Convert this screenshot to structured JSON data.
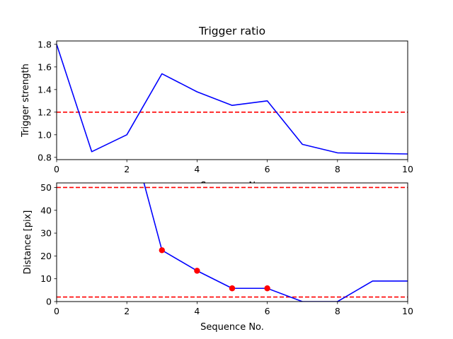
{
  "chart_data": [
    {
      "type": "line",
      "title": "Trigger ratio",
      "xlabel": "Sequence No.",
      "ylabel": "Trigger strength",
      "xlim": [
        0,
        10
      ],
      "ylim": [
        0.78,
        1.83
      ],
      "xticks": [
        "0",
        "2",
        "4",
        "6",
        "8",
        "10"
      ],
      "yticks": [
        "0.8",
        "1.0",
        "1.2",
        "1.4",
        "1.6",
        "1.8"
      ],
      "grid": false,
      "series": [
        {
          "color": "#0000ff",
          "x": [
            0,
            1,
            2,
            3,
            4,
            5,
            6,
            7,
            8,
            9,
            10
          ],
          "y": [
            1.8,
            0.85,
            1.0,
            1.54,
            1.38,
            1.26,
            1.3,
            0.915,
            0.84,
            0.835,
            0.83
          ]
        }
      ],
      "hlines": [
        {
          "y": 1.2,
          "color": "#ff0000",
          "style": "dashed"
        }
      ]
    },
    {
      "type": "line",
      "title": "",
      "xlabel": "Sequence No.",
      "ylabel": "Distance [pix]",
      "xlim": [
        0,
        10
      ],
      "ylim": [
        0,
        52
      ],
      "xticks": [
        "0",
        "2",
        "4",
        "6",
        "8",
        "10"
      ],
      "yticks": [
        "0",
        "10",
        "20",
        "30",
        "40",
        "50"
      ],
      "grid": false,
      "series": [
        {
          "color": "#0000ff",
          "x": [
            2,
            3,
            4,
            5,
            6,
            7,
            8,
            9,
            10
          ],
          "y": [
            80,
            22.5,
            13.5,
            5.8,
            5.8,
            0,
            0,
            9,
            9
          ]
        }
      ],
      "markers": {
        "color": "#ff0000",
        "x": [
          3,
          4,
          5,
          6
        ],
        "y": [
          22.5,
          13.5,
          5.8,
          5.8
        ]
      },
      "hlines": [
        {
          "y": 50,
          "color": "#ff0000",
          "style": "dashed"
        },
        {
          "y": 2,
          "color": "#ff0000",
          "style": "dashed"
        }
      ]
    }
  ]
}
